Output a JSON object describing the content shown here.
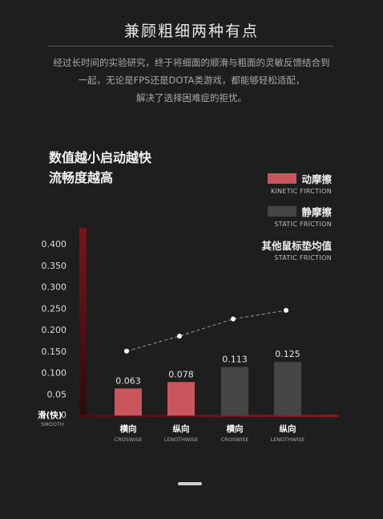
{
  "header": {
    "title": "兼顾粗细两种有点",
    "description_lines": [
      "经过长时间的实验研究，终于将细面的顺滑与粗面的灵敏反馈结合到",
      "一起，无论是FPS还是DOTA类游戏，都能够轻松适配，",
      "解决了选择困难症的拒忧。"
    ]
  },
  "headline": [
    "数值越小启动越快",
    "流畅度越高"
  ],
  "legend": {
    "kinetic": {
      "cn": "动摩擦",
      "en": "KINETIC FIRCTION",
      "color": "#c9555d"
    },
    "static": {
      "cn": "静摩擦",
      "en": "STATIC FRICTION",
      "color": "#454545"
    },
    "average": {
      "cn": "其他鼠标垫均值",
      "en": "STATIC FRICTION"
    }
  },
  "chart_data": {
    "type": "bar",
    "ylim": [
      0,
      0.45
    ],
    "yticks": [
      "0",
      "0.05",
      "0.100",
      "0.150",
      "0.200",
      "0.250",
      "0.300",
      "0.350",
      "0.400"
    ],
    "yaxis_bottom_label_cn": "滑(快)",
    "yaxis_bottom_label_en": "SMOOTH",
    "categories": [
      {
        "cn": "横向",
        "en": "CROSWISE"
      },
      {
        "cn": "纵向",
        "en": "LENGTHWISE"
      },
      {
        "cn": "横向",
        "en": "CROSWISE"
      },
      {
        "cn": "纵向",
        "en": "LENGTHWISE"
      }
    ],
    "series": [
      {
        "name": "动摩擦",
        "kind": "bar",
        "color": "#c9555d",
        "values": [
          0.063,
          0.078,
          null,
          null
        ],
        "labels": [
          "0.063",
          "0.078",
          null,
          null
        ]
      },
      {
        "name": "静摩擦",
        "kind": "bar",
        "color": "#454545",
        "values": [
          null,
          null,
          0.113,
          0.125
        ],
        "labels": [
          null,
          null,
          "0.113",
          "0.125"
        ]
      },
      {
        "name": "其他鼠标垫均值",
        "kind": "dashed-line",
        "color": "#ffffff",
        "values": [
          0.15,
          0.185,
          0.225,
          0.245
        ]
      }
    ]
  }
}
